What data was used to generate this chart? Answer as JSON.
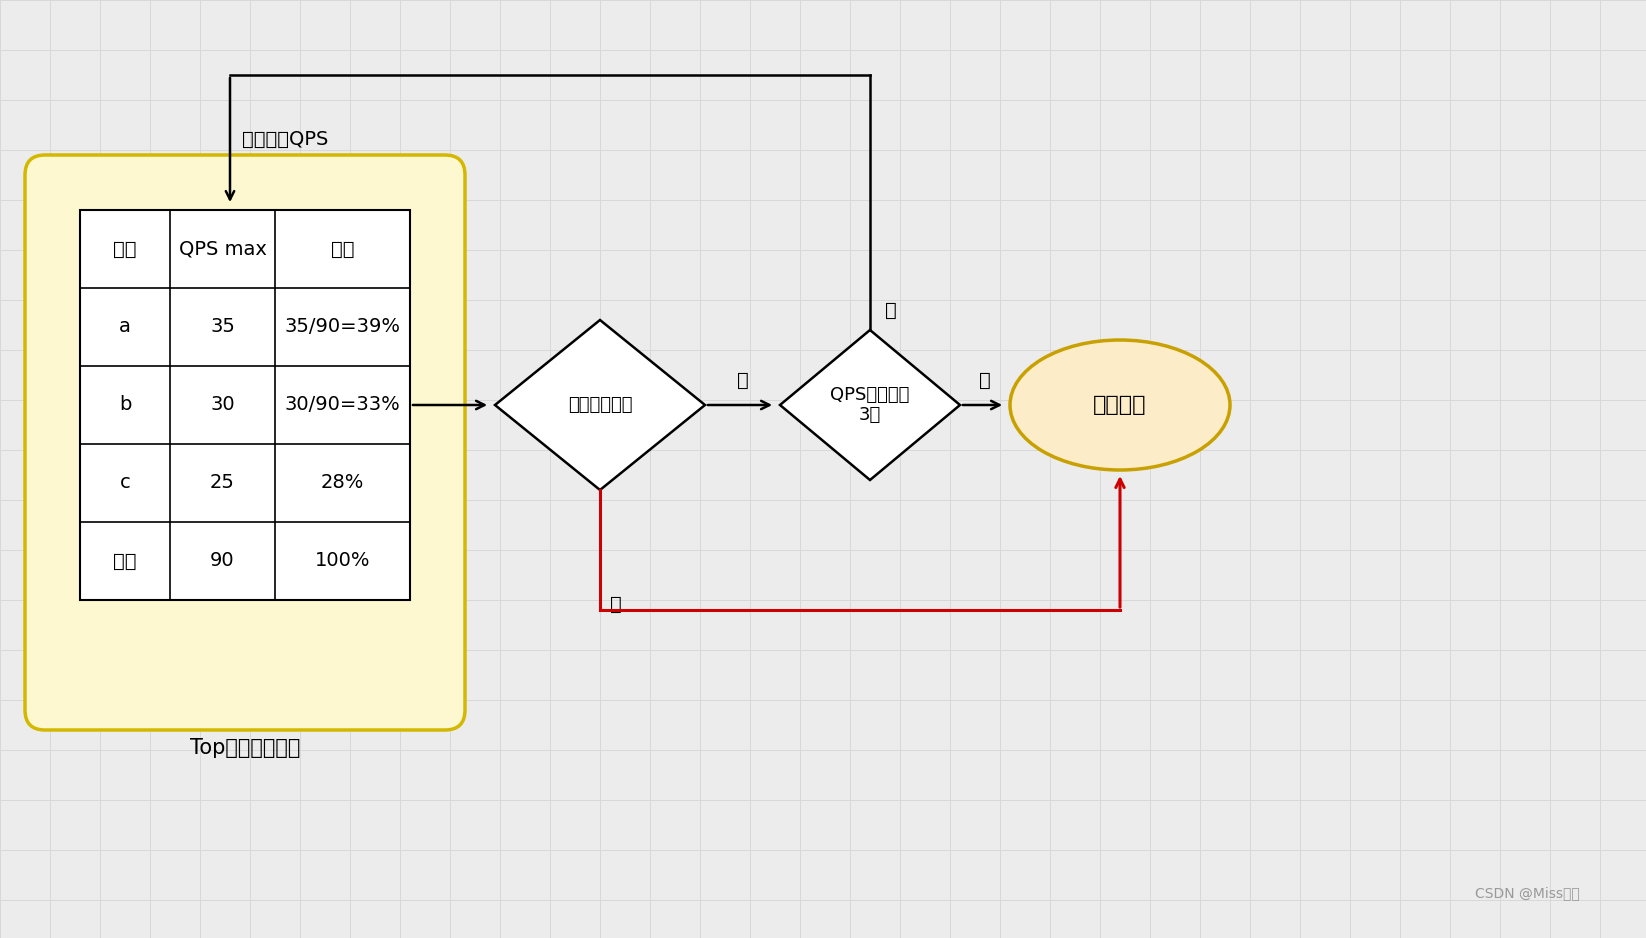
{
  "bg_color": "#ececec",
  "grid_color": "#d8d8d8",
  "table_rounded_bg": "#fdf8d0",
  "table_border_color": "#d4b800",
  "table_headers": [
    "接口",
    "QPS max",
    "占比"
  ],
  "table_rows": [
    [
      "a",
      "35",
      "35/90=39%"
    ],
    [
      "b",
      "30",
      "30/90=33%"
    ],
    [
      "c",
      "25",
      "28%"
    ],
    [
      "总计",
      "90",
      "100%"
    ]
  ],
  "table_caption": "Top流量接口占比",
  "arrow_label_up": "逐步提高QPS",
  "diamond1_label": "指标是否异常",
  "diamond2_label": "QPS是否达到\n3倍",
  "oval_label": "停止施压",
  "no_label": "否",
  "yes_label": "是",
  "watermark": "CSDN @Miss豌豆"
}
